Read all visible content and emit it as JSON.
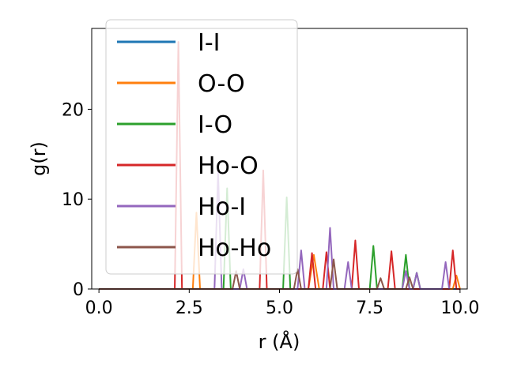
{
  "chart_data": {
    "type": "line",
    "title": "",
    "xlabel": "r (Å)",
    "ylabel": "g(r)",
    "xlim": [
      -0.2,
      10.2
    ],
    "ylim": [
      0,
      29
    ],
    "xticks": [
      0.0,
      2.5,
      5.0,
      7.5,
      10.0
    ],
    "xtick_labels": [
      "0.0",
      "2.5",
      "5.0",
      "7.5",
      "10.0"
    ],
    "yticks": [
      0,
      10,
      20
    ],
    "ytick_labels": [
      "0",
      "10",
      "20"
    ],
    "grid": false,
    "legend": "upper left",
    "series": [
      {
        "name": "I-I",
        "color": "#1f77b4",
        "x": [
          0.0,
          10.0
        ],
        "y": [
          0,
          0
        ]
      },
      {
        "name": "O-O",
        "color": "#ff7f0e",
        "x": [
          0.0,
          2.6,
          2.7,
          2.8,
          5.8,
          5.95,
          6.1,
          9.8,
          9.9,
          10.0
        ],
        "y": [
          0,
          0,
          8.5,
          0,
          0,
          3.8,
          0,
          0,
          1.5,
          0
        ]
      },
      {
        "name": "I-O",
        "color": "#2ca02c",
        "x": [
          0.0,
          3.45,
          3.55,
          3.65,
          5.1,
          5.2,
          5.3,
          7.5,
          7.6,
          7.7,
          8.4,
          8.5,
          8.6,
          8.7,
          8.8,
          8.9
        ],
        "y": [
          0,
          0,
          11.2,
          0,
          0,
          10.2,
          0,
          0,
          4.8,
          0,
          0,
          3.8,
          0,
          0,
          1.8,
          0
        ]
      },
      {
        "name": "Ho-O",
        "color": "#d62728",
        "x": [
          0.0,
          2.1,
          2.2,
          2.3,
          4.45,
          4.55,
          4.65,
          5.8,
          5.9,
          6.0,
          6.2,
          6.3,
          6.4,
          7.0,
          7.1,
          7.2,
          8.0,
          8.1,
          8.2,
          9.7,
          9.8,
          9.9,
          10.0
        ],
        "y": [
          0,
          0,
          27.5,
          0,
          0,
          13.2,
          0,
          0,
          4.0,
          0,
          0,
          4.1,
          0,
          0,
          5.4,
          0,
          0,
          4.2,
          0,
          0,
          4.3,
          0,
          0
        ]
      },
      {
        "name": "Ho-I",
        "color": "#9467bd",
        "x": [
          0.0,
          3.2,
          3.3,
          3.4,
          3.9,
          4.0,
          4.1,
          5.5,
          5.6,
          5.7,
          6.3,
          6.4,
          6.5,
          6.8,
          6.9,
          7.0,
          8.4,
          8.5,
          8.6,
          8.7,
          8.8,
          8.9,
          9.5,
          9.6,
          9.7
        ],
        "y": [
          0,
          0,
          13.0,
          0,
          0,
          2.2,
          0,
          0,
          4.3,
          0,
          0,
          6.8,
          0,
          0,
          3.0,
          0,
          0,
          2.0,
          0,
          0,
          1.8,
          0,
          0,
          3.0,
          0
        ]
      },
      {
        "name": "Ho-Ho",
        "color": "#8c564b",
        "x": [
          0.0,
          3.7,
          3.8,
          3.9,
          5.4,
          5.5,
          5.6,
          6.4,
          6.5,
          6.6,
          7.7,
          7.8,
          7.9,
          8.5,
          8.6,
          8.7
        ],
        "y": [
          0,
          0,
          2.0,
          0,
          0,
          2.2,
          0,
          0,
          3.3,
          0,
          0,
          1.2,
          0,
          0,
          1.3,
          0
        ]
      }
    ]
  }
}
